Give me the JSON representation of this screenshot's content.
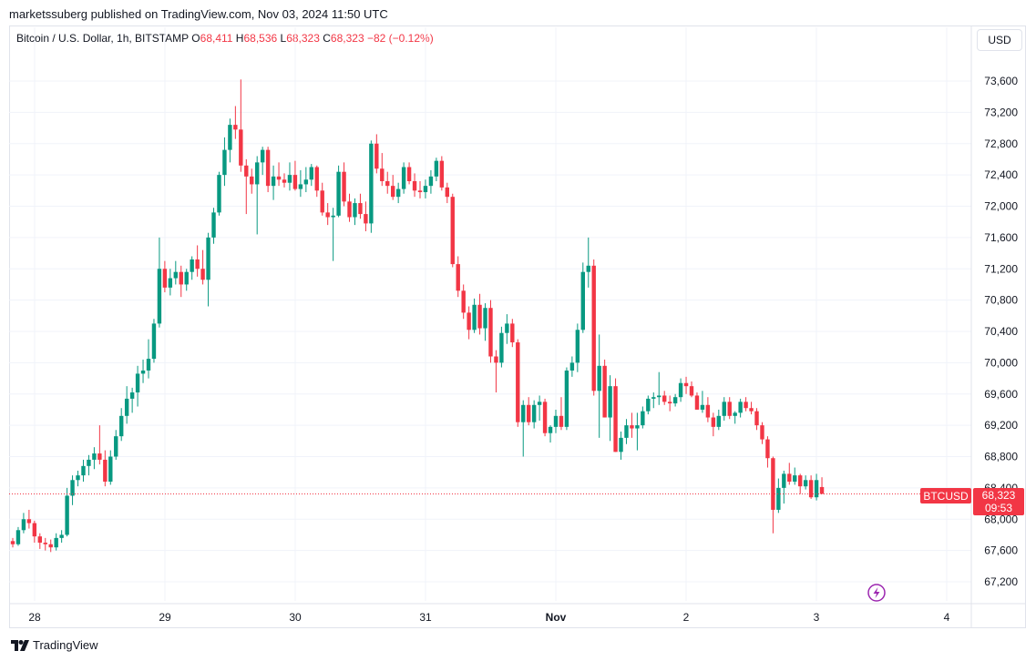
{
  "header": {
    "published": "marketssuberg published on TradingView.com, Nov 03, 2024 11:50 UTC"
  },
  "legend": {
    "symbol": "Bitcoin / U.S. Dollar, 1h, BITSTAMP",
    "o_label": "O",
    "o_value": "68,411",
    "h_label": "H",
    "h_value": "68,536",
    "l_label": "L",
    "l_value": "68,323",
    "c_label": "C",
    "c_value": "68,323",
    "change": "−82 (−0.12%)"
  },
  "currency_button": "USD",
  "price_tag": {
    "symbol": "BTCUSD",
    "price": "68,323",
    "countdown": "09:53",
    "value": 68323
  },
  "branding": "TradingView",
  "icons": {
    "lightning": "lightning-icon",
    "logo": "tradingview-logo-icon"
  },
  "colors": {
    "up": "#089981",
    "down": "#f23645",
    "grid": "#f0f3fa",
    "accent": "#9c27b0"
  },
  "chart_data": {
    "type": "candlestick",
    "timeframe": "1h",
    "y_ticks": [
      67200,
      67600,
      68000,
      68400,
      68800,
      69200,
      69600,
      70000,
      70400,
      70800,
      71200,
      71600,
      72000,
      72400,
      72800,
      73200,
      73600
    ],
    "y_tick_labels": [
      "67,200",
      "67,600",
      "68,000",
      "68,400",
      "68,800",
      "69,200",
      "69,600",
      "70,000",
      "70,400",
      "70,800",
      "71,200",
      "71,600",
      "72,000",
      "72,400",
      "72,800",
      "73,200",
      "73,600"
    ],
    "x_tick_labels": [
      "28",
      "29",
      "30",
      "31",
      "Nov",
      "2",
      "3",
      "4"
    ],
    "x_tick_bold": [
      false,
      false,
      false,
      false,
      true,
      false,
      false,
      false
    ],
    "ylim": [
      66950,
      73800
    ],
    "grid": true,
    "candles_ohlc": [
      [
        67720,
        67760,
        67640,
        67680
      ],
      [
        67680,
        67900,
        67660,
        67860
      ],
      [
        67860,
        68080,
        67820,
        68000
      ],
      [
        68000,
        68120,
        67880,
        67950
      ],
      [
        67950,
        67980,
        67700,
        67780
      ],
      [
        67780,
        67820,
        67620,
        67700
      ],
      [
        67700,
        67760,
        67600,
        67680
      ],
      [
        67680,
        67740,
        67580,
        67640
      ],
      [
        67640,
        67820,
        67600,
        67760
      ],
      [
        67760,
        67860,
        67700,
        67800
      ],
      [
        67800,
        68400,
        67780,
        68300
      ],
      [
        68300,
        68560,
        68180,
        68500
      ],
      [
        68500,
        68620,
        68420,
        68560
      ],
      [
        68560,
        68760,
        68480,
        68680
      ],
      [
        68680,
        68820,
        68560,
        68760
      ],
      [
        68760,
        68920,
        68640,
        68840
      ],
      [
        68840,
        69200,
        68700,
        68760
      ],
      [
        68760,
        68880,
        68420,
        68480
      ],
      [
        68480,
        68880,
        68440,
        68800
      ],
      [
        68800,
        69140,
        68760,
        69060
      ],
      [
        69060,
        69420,
        69000,
        69320
      ],
      [
        69320,
        69700,
        69220,
        69540
      ],
      [
        69540,
        69680,
        69360,
        69620
      ],
      [
        69620,
        69960,
        69440,
        69860
      ],
      [
        69860,
        70040,
        69740,
        69900
      ],
      [
        69900,
        70300,
        69800,
        70050
      ],
      [
        70050,
        70560,
        70000,
        70500
      ],
      [
        70500,
        71600,
        70450,
        71200
      ],
      [
        71200,
        71300,
        70900,
        70960
      ],
      [
        70960,
        71200,
        70860,
        71080
      ],
      [
        71080,
        71300,
        71000,
        71160
      ],
      [
        71160,
        71240,
        70840,
        71000
      ],
      [
        71000,
        71200,
        70920,
        71160
      ],
      [
        71160,
        71360,
        71060,
        71320
      ],
      [
        71320,
        71500,
        71100,
        71200
      ],
      [
        71200,
        71440,
        71000,
        71060
      ],
      [
        71060,
        71660,
        70720,
        71600
      ],
      [
        71600,
        71980,
        71520,
        71920
      ],
      [
        71920,
        72440,
        71880,
        72400
      ],
      [
        72400,
        72880,
        72260,
        72720
      ],
      [
        72720,
        73120,
        72560,
        73040
      ],
      [
        73040,
        73280,
        72860,
        72980
      ],
      [
        72980,
        73620,
        72440,
        72520
      ],
      [
        72520,
        72600,
        71900,
        72380
      ],
      [
        72380,
        72480,
        72160,
        72280
      ],
      [
        72280,
        72640,
        71640,
        72560
      ],
      [
        72560,
        72760,
        72400,
        72720
      ],
      [
        72720,
        72760,
        72180,
        72260
      ],
      [
        72260,
        72520,
        72080,
        72380
      ],
      [
        72380,
        72560,
        72260,
        72340
      ],
      [
        72340,
        72420,
        72240,
        72300
      ],
      [
        72300,
        72560,
        72200,
        72400
      ],
      [
        72400,
        72580,
        72200,
        72220
      ],
      [
        72220,
        72460,
        72120,
        72280
      ],
      [
        72280,
        72500,
        72180,
        72340
      ],
      [
        72340,
        72540,
        72260,
        72500
      ],
      [
        72500,
        72520,
        72120,
        72200
      ],
      [
        72200,
        72300,
        71880,
        71920
      ],
      [
        71920,
        72040,
        71760,
        71860
      ],
      [
        71860,
        71980,
        71300,
        71880
      ],
      [
        71880,
        72520,
        71860,
        72440
      ],
      [
        72440,
        72560,
        72000,
        72060
      ],
      [
        72060,
        72160,
        71800,
        71860
      ],
      [
        71860,
        72100,
        71760,
        72040
      ],
      [
        72040,
        72160,
        71840,
        71900
      ],
      [
        71900,
        72060,
        71680,
        71780
      ],
      [
        71780,
        72840,
        71660,
        72800
      ],
      [
        72800,
        72920,
        72420,
        72480
      ],
      [
        72480,
        72680,
        72260,
        72320
      ],
      [
        72320,
        72440,
        72160,
        72260
      ],
      [
        72260,
        72400,
        72080,
        72120
      ],
      [
        72120,
        72300,
        72040,
        72220
      ],
      [
        72220,
        72560,
        72160,
        72500
      ],
      [
        72500,
        72560,
        72280,
        72320
      ],
      [
        72320,
        72420,
        72120,
        72200
      ],
      [
        72200,
        72320,
        72100,
        72180
      ],
      [
        72180,
        72340,
        72100,
        72260
      ],
      [
        72260,
        72460,
        72160,
        72380
      ],
      [
        72380,
        72620,
        72320,
        72580
      ],
      [
        72580,
        72640,
        72200,
        72240
      ],
      [
        72240,
        72300,
        72040,
        72120
      ],
      [
        72120,
        72160,
        71220,
        71260
      ],
      [
        71260,
        71360,
        70840,
        70920
      ],
      [
        70920,
        71000,
        70560,
        70640
      ],
      [
        70640,
        70720,
        70300,
        70420
      ],
      [
        70420,
        70820,
        70380,
        70740
      ],
      [
        70740,
        70880,
        70360,
        70440
      ],
      [
        70440,
        70760,
        70280,
        70700
      ],
      [
        70700,
        70800,
        70000,
        70080
      ],
      [
        70080,
        70160,
        69620,
        70000
      ],
      [
        70000,
        70460,
        69940,
        70380
      ],
      [
        70380,
        70620,
        70240,
        70500
      ],
      [
        70500,
        70560,
        70200,
        70260
      ],
      [
        70260,
        70300,
        69180,
        69240
      ],
      [
        69240,
        69520,
        68800,
        69460
      ],
      [
        69460,
        69560,
        69200,
        69240
      ],
      [
        69240,
        69520,
        69160,
        69460
      ],
      [
        69460,
        69580,
        69260,
        69500
      ],
      [
        69500,
        69540,
        69060,
        69100
      ],
      [
        69100,
        69200,
        68980,
        69180
      ],
      [
        69180,
        69400,
        69100,
        69320
      ],
      [
        69320,
        69560,
        69140,
        69180
      ],
      [
        69180,
        69940,
        69140,
        69900
      ],
      [
        69900,
        70080,
        69820,
        70000
      ],
      [
        70000,
        70500,
        69880,
        70420
      ],
      [
        70420,
        71280,
        70380,
        71160
      ],
      [
        71160,
        71600,
        70960,
        71240
      ],
      [
        71240,
        71320,
        69580,
        69640
      ],
      [
        69640,
        70360,
        69040,
        69960
      ],
      [
        69960,
        70040,
        69300,
        69300
      ],
      [
        69300,
        69840,
        69000,
        69700
      ],
      [
        69700,
        69800,
        68860,
        68860
      ],
      [
        68860,
        69120,
        68760,
        69040
      ],
      [
        69040,
        69280,
        68960,
        69200
      ],
      [
        69200,
        69360,
        69040,
        69160
      ],
      [
        69160,
        69360,
        68880,
        69200
      ],
      [
        69200,
        69440,
        69160,
        69380
      ],
      [
        69380,
        69580,
        69340,
        69540
      ],
      [
        69540,
        69620,
        69420,
        69560
      ],
      [
        69560,
        69880,
        69460,
        69580
      ],
      [
        69580,
        69640,
        69460,
        69500
      ],
      [
        69500,
        69580,
        69380,
        69480
      ],
      [
        69480,
        69600,
        69440,
        69560
      ],
      [
        69560,
        69800,
        69500,
        69740
      ],
      [
        69740,
        69820,
        69600,
        69700
      ],
      [
        69700,
        69760,
        69560,
        69580
      ],
      [
        69580,
        69620,
        69400,
        69400
      ],
      [
        69400,
        69640,
        69360,
        69460
      ],
      [
        69460,
        69560,
        69240,
        69300
      ],
      [
        69300,
        69360,
        69060,
        69180
      ],
      [
        69180,
        69400,
        69140,
        69320
      ],
      [
        69320,
        69560,
        69260,
        69500
      ],
      [
        69500,
        69560,
        69280,
        69320
      ],
      [
        69320,
        69380,
        69220,
        69360
      ],
      [
        69360,
        69540,
        69300,
        69500
      ],
      [
        69500,
        69560,
        69380,
        69420
      ],
      [
        69420,
        69500,
        69340,
        69380
      ],
      [
        69380,
        69420,
        69140,
        69200
      ],
      [
        69200,
        69240,
        68960,
        69020
      ],
      [
        69020,
        69060,
        68660,
        68780
      ],
      [
        68780,
        68800,
        67820,
        68120
      ],
      [
        68120,
        68520,
        68080,
        68400
      ],
      [
        68400,
        68620,
        68200,
        68580
      ],
      [
        68580,
        68720,
        68440,
        68480
      ],
      [
        68480,
        68660,
        68440,
        68560
      ],
      [
        68560,
        68580,
        68320,
        68420
      ],
      [
        68420,
        68560,
        68380,
        68500
      ],
      [
        68500,
        68560,
        68260,
        68280
      ],
      [
        68280,
        68580,
        68240,
        68500
      ],
      [
        68411,
        68536,
        68323,
        68323
      ]
    ]
  }
}
